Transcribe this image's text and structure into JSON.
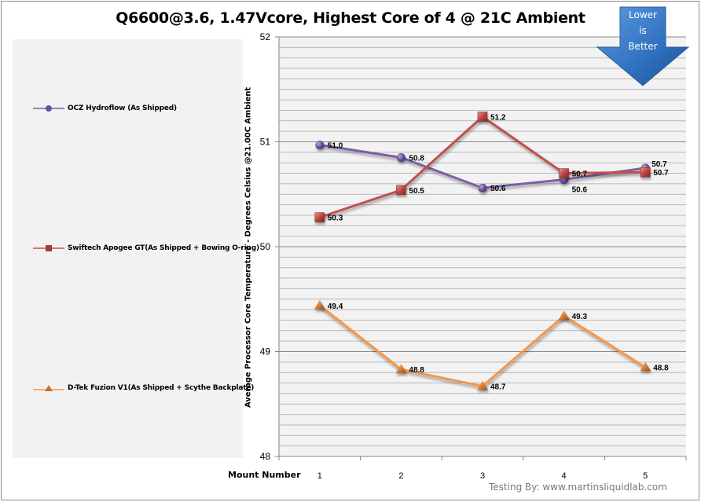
{
  "chart_data": {
    "type": "line",
    "title": "Q6600@3.6, 1.47Vcore, Highest Core of 4 @ 21C Ambient",
    "xlabel": "Mount Number",
    "ylabel": "Average Processor Core Temperature - Degrees Celsius @21.00C Ambient",
    "categories": [
      "1",
      "2",
      "3",
      "4",
      "5"
    ],
    "ylim": [
      48,
      52
    ],
    "yticks": [
      "48",
      "49",
      "50",
      "51",
      "52"
    ],
    "minor_grid_step": 0.1,
    "grid": true,
    "legend_position": "left",
    "series": [
      {
        "name": "OCZ Hydroflow (As Shipped)",
        "marker": "circle",
        "color": "#7b5ea6",
        "values": [
          50.97,
          50.85,
          50.56,
          50.64,
          50.75
        ],
        "labels": [
          "51.0",
          "50.8",
          "50.6",
          "50.6",
          "50.7"
        ]
      },
      {
        "name": "Swiftech Apogee GT(As Shipped + Bowing O-ring)",
        "marker": "square",
        "color": "#c0504d",
        "values": [
          50.28,
          50.54,
          51.24,
          50.7,
          50.71
        ],
        "labels": [
          "50.3",
          "50.5",
          "51.2",
          "50.7",
          "50.7"
        ]
      },
      {
        "name": "D-Tek Fuzion V1(As Shipped + Scythe Backplate)",
        "marker": "triangle",
        "color": "#f79646",
        "values": [
          49.44,
          48.83,
          48.67,
          49.34,
          48.85
        ],
        "labels": [
          "49.4",
          "48.8",
          "48.7",
          "49.3",
          "48.8"
        ]
      }
    ]
  },
  "annotation": {
    "arrow_lines": [
      "Lower",
      "is",
      "Better"
    ],
    "arrow_color": "#3a7bc8"
  },
  "credit": "Testing By: www.martinsliquidlab.com"
}
